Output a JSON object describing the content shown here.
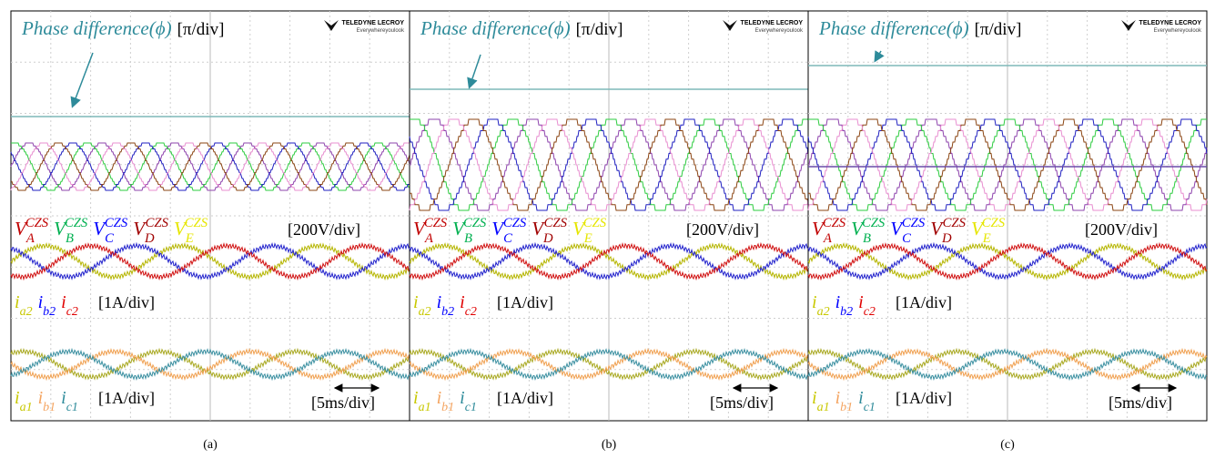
{
  "panels": [
    {
      "caption": "(a)",
      "phase_label": "Phase difference(ϕ)",
      "phase_unit": "[π/div]",
      "brand": "TELEDYNE LECROY",
      "slogan": "Everywhereyoulook",
      "voltage_labels": [
        {
          "base": "V",
          "sub": "A",
          "sup": "CZS",
          "color": "#c00000"
        },
        {
          "base": "V",
          "sub": "B",
          "sup": "CZS",
          "color": "#00b050"
        },
        {
          "base": "V",
          "sub": "C",
          "sup": "CZS",
          "color": "#0000ff"
        },
        {
          "base": "V",
          "sub": "D",
          "sup": "CZS",
          "color": "#a00000"
        },
        {
          "base": "V",
          "sub": "E",
          "sup": "CZS",
          "color": "#e6e600"
        }
      ],
      "voltage_scale": "[200V/div]",
      "current2_labels": [
        {
          "base": "i",
          "sub": "a2",
          "color": "#c8c800"
        },
        {
          "base": "i",
          "sub": "b2",
          "color": "#0000ff"
        },
        {
          "base": "i",
          "sub": "c2",
          "color": "#e00000"
        }
      ],
      "current2_scale": "[1A/div]",
      "current1_labels": [
        {
          "base": "i",
          "sub": "a1",
          "color": "#c8c800"
        },
        {
          "base": "i",
          "sub": "b1",
          "color": "#f4a460"
        },
        {
          "base": "i",
          "sub": "c1",
          "color": "#2e8b9a"
        }
      ],
      "current1_scale": "[1A/div]",
      "time_scale": "[5ms/div]"
    },
    {
      "caption": "(b)",
      "phase_label": "Phase difference(ϕ)",
      "phase_unit": "[π/div]",
      "brand": "TELEDYNE LECROY",
      "slogan": "Everywhereyoulook",
      "voltage_labels": [
        {
          "base": "V",
          "sub": "A",
          "sup": "CZS",
          "color": "#c00000"
        },
        {
          "base": "V",
          "sub": "B",
          "sup": "CZS",
          "color": "#00b050"
        },
        {
          "base": "V",
          "sub": "C",
          "sup": "CZS",
          "color": "#0000ff"
        },
        {
          "base": "V",
          "sub": "D",
          "sup": "CZS",
          "color": "#a00000"
        },
        {
          "base": "V",
          "sub": "E",
          "sup": "CZS",
          "color": "#e6e600"
        }
      ],
      "voltage_scale": "[200V/div]",
      "current2_labels": [
        {
          "base": "i",
          "sub": "a2",
          "color": "#c8c800"
        },
        {
          "base": "i",
          "sub": "b2",
          "color": "#0000ff"
        },
        {
          "base": "i",
          "sub": "c2",
          "color": "#e00000"
        }
      ],
      "current2_scale": "[1A/div]",
      "current1_labels": [
        {
          "base": "i",
          "sub": "a1",
          "color": "#c8c800"
        },
        {
          "base": "i",
          "sub": "b1",
          "color": "#f4a460"
        },
        {
          "base": "i",
          "sub": "c1",
          "color": "#2e8b9a"
        }
      ],
      "current1_scale": "[1A/div]",
      "time_scale": "[5ms/div]"
    },
    {
      "caption": "(c)",
      "phase_label": "Phase difference(ϕ)",
      "phase_unit": "[π/div]",
      "brand": "TELEDYNE LECROY",
      "slogan": "Everywhereyoulook",
      "voltage_labels": [
        {
          "base": "V",
          "sub": "A",
          "sup": "CZS",
          "color": "#c00000"
        },
        {
          "base": "V",
          "sub": "B",
          "sup": "CZS",
          "color": "#00b050"
        },
        {
          "base": "V",
          "sub": "C",
          "sup": "CZS",
          "color": "#0000ff"
        },
        {
          "base": "V",
          "sub": "D",
          "sup": "CZS",
          "color": "#a00000"
        },
        {
          "base": "V",
          "sub": "E",
          "sup": "CZS",
          "color": "#e6e600"
        }
      ],
      "voltage_scale": "[200V/div]",
      "current2_labels": [
        {
          "base": "i",
          "sub": "a2",
          "color": "#c8c800"
        },
        {
          "base": "i",
          "sub": "b2",
          "color": "#0000ff"
        },
        {
          "base": "i",
          "sub": "c2",
          "color": "#e00000"
        }
      ],
      "current2_scale": "[1A/div]",
      "current1_labels": [
        {
          "base": "i",
          "sub": "a1",
          "color": "#c8c800"
        },
        {
          "base": "i",
          "sub": "b1",
          "color": "#f4a460"
        },
        {
          "base": "i",
          "sub": "c1",
          "color": "#2e8b9a"
        }
      ],
      "current1_scale": "[1A/div]",
      "time_scale": "[5ms/div]"
    }
  ]
}
